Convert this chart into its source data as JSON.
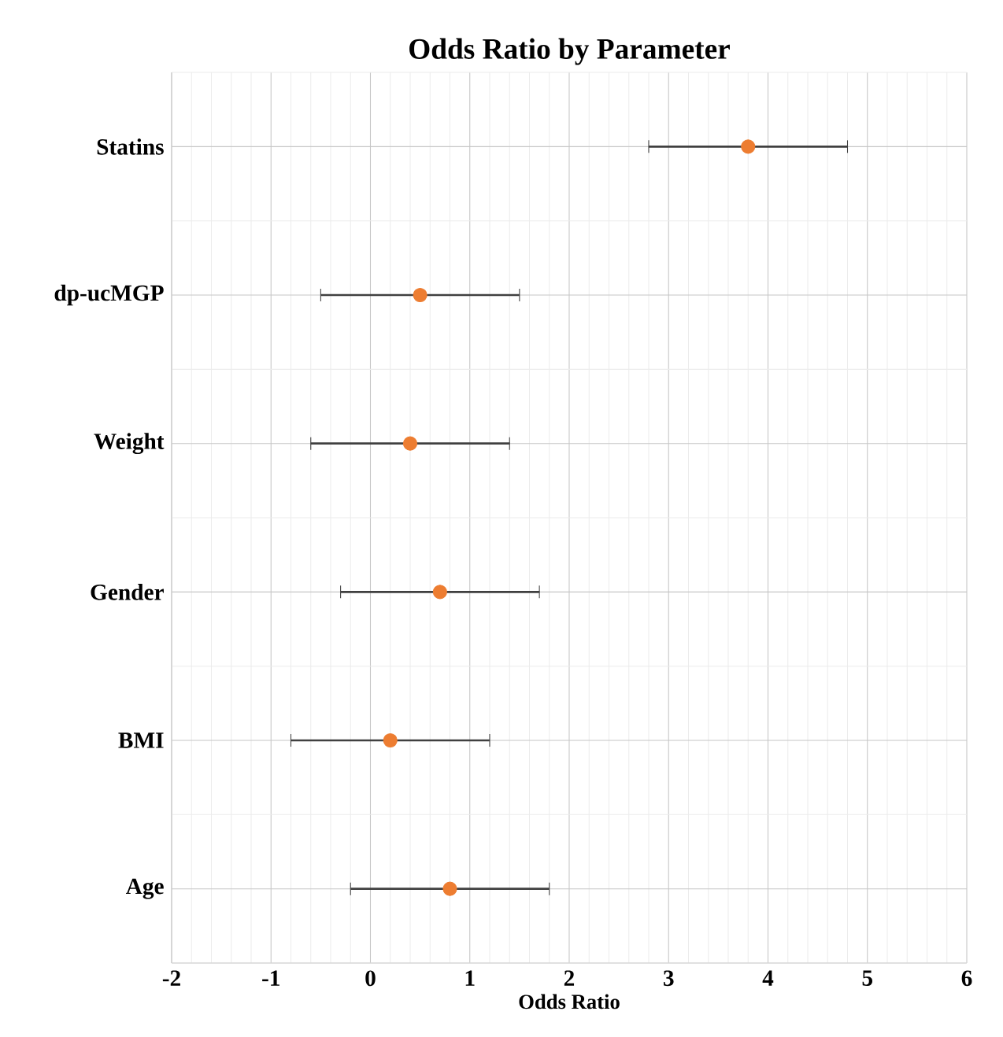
{
  "chart_data": {
    "type": "scatter",
    "title": "Odds Ratio by Parameter",
    "xlabel": "Odds Ratio",
    "orientation": "horizontal",
    "categories": [
      "Statins",
      "dp-ucMGP",
      "Weight",
      "Gender",
      "BMI",
      "Age"
    ],
    "values": [
      3.8,
      0.5,
      0.4,
      0.7,
      0.2,
      0.8
    ],
    "errors": [
      1.0,
      1.0,
      1.0,
      1.0,
      1.0,
      1.0
    ],
    "color": "#ed7d31",
    "marker": "circle",
    "xlim": [
      -2,
      6
    ],
    "xticks": [
      -2,
      -1,
      0,
      1,
      2,
      3,
      4,
      5,
      6
    ],
    "grid": true
  }
}
